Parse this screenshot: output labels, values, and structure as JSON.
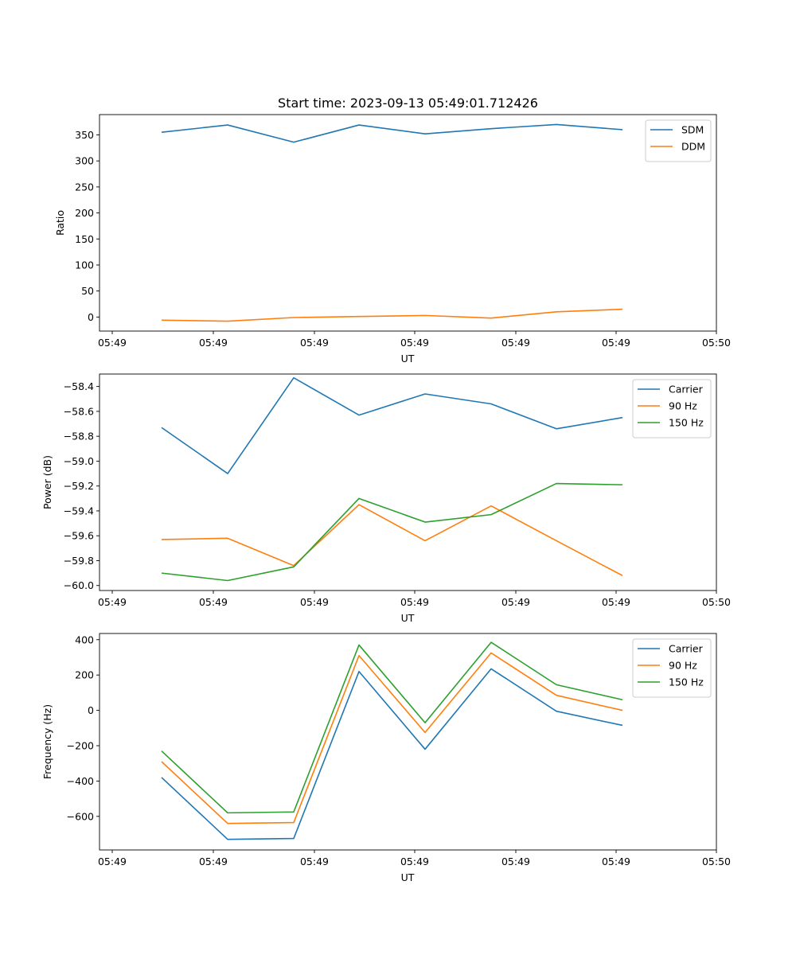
{
  "chart_data": [
    {
      "type": "line",
      "title": "Start time: 2023-09-13 05:49:01.712426",
      "xlabel": "UT",
      "ylabel": "Ratio",
      "x_tick_labels": [
        "05:49",
        "05:49",
        "05:49",
        "05:49",
        "05:49",
        "05:49",
        "05:50"
      ],
      "ylim": [
        -27,
        389
      ],
      "y_ticks": [
        0,
        50,
        100,
        150,
        200,
        250,
        300,
        350
      ],
      "legend_position": "top-right",
      "series": [
        {
          "name": "SDM",
          "color": "#1f77b4",
          "values": [
            355,
            369,
            336,
            369,
            352,
            362,
            370,
            360
          ]
        },
        {
          "name": "DDM",
          "color": "#ff7f0e",
          "values": [
            -6,
            -8,
            -1,
            1,
            3,
            -2,
            10,
            15
          ]
        }
      ]
    },
    {
      "type": "line",
      "title": "",
      "xlabel": "UT",
      "ylabel": "Power (dB)",
      "x_tick_labels": [
        "05:49",
        "05:49",
        "05:49",
        "05:49",
        "05:49",
        "05:49",
        "05:50"
      ],
      "ylim": [
        -60.04,
        -58.3
      ],
      "y_ticks": [
        -60.0,
        -59.8,
        -59.6,
        -59.4,
        -59.2,
        -59.0,
        -58.8,
        -58.6,
        -58.4
      ],
      "y_tick_labels": [
        "−60.0",
        "−59.8",
        "−59.6",
        "−59.4",
        "−59.2",
        "−59.0",
        "−58.8",
        "−58.6",
        "−58.4"
      ],
      "legend_position": "top-right",
      "series": [
        {
          "name": "Carrier",
          "color": "#1f77b4",
          "values": [
            -58.73,
            -59.1,
            -58.33,
            -58.63,
            -58.46,
            -58.54,
            -58.74,
            -58.65
          ]
        },
        {
          "name": "90 Hz",
          "color": "#ff7f0e",
          "values": [
            -59.63,
            -59.62,
            -59.84,
            -59.35,
            -59.64,
            -59.36,
            -59.64,
            -59.92
          ]
        },
        {
          "name": "150 Hz",
          "color": "#2ca02c",
          "values": [
            -59.9,
            -59.96,
            -59.85,
            -59.3,
            -59.49,
            -59.43,
            -59.18,
            -59.19
          ]
        }
      ]
    },
    {
      "type": "line",
      "title": "",
      "xlabel": "UT",
      "ylabel": "Frequency (Hz)",
      "x_tick_labels": [
        "05:49",
        "05:49",
        "05:49",
        "05:49",
        "05:49",
        "05:49",
        "05:50"
      ],
      "ylim": [
        -790,
        435
      ],
      "y_ticks": [
        -600,
        -400,
        -200,
        0,
        200,
        400
      ],
      "y_tick_labels": [
        "−600",
        "−400",
        "−200",
        "0",
        "200",
        "400"
      ],
      "legend_position": "top-right",
      "series": [
        {
          "name": "Carrier",
          "color": "#1f77b4",
          "values": [
            -380,
            -730,
            -725,
            220,
            -220,
            235,
            -5,
            -85
          ]
        },
        {
          "name": "90 Hz",
          "color": "#ff7f0e",
          "values": [
            -290,
            -640,
            -635,
            310,
            -125,
            325,
            85,
            0
          ]
        },
        {
          "name": "150 Hz",
          "color": "#2ca02c",
          "values": [
            -230,
            -580,
            -575,
            370,
            -70,
            385,
            145,
            60
          ]
        }
      ]
    }
  ]
}
